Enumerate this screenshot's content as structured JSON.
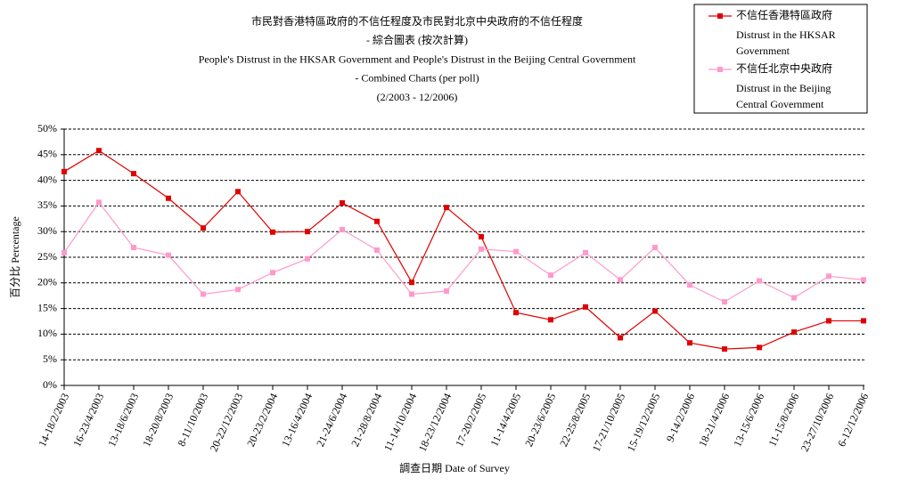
{
  "chart_data": {
    "type": "line",
    "title_lines": [
      "市民對香港特區政府的不信任程度及市民對北京中央政府的不信任程度",
      "- 綜合圖表 (按次計算)",
      "People's Distrust in the HKSAR Government and People's Distrust in the Beijing Central Government",
      "- Combined Charts (per poll)",
      "(2/2003 - 12/2006)"
    ],
    "y_label": "百分比 Percentage",
    "x_label": "調查日期 Date of Survey",
    "categories": [
      "14-18/2/2003",
      "16-23/4/2003",
      "13-18/6/2003",
      "18-20/8/2003",
      "8-11/10/2003",
      "20-22/12/2003",
      "20-23/2/2004",
      "13-16/4/2004",
      "21-24/6/2004",
      "21-28/8/2004",
      "11-14/10/2004",
      "18-23/12/2004",
      "17-20/2/2005",
      "11-14/4/2005",
      "20-23/6/2005",
      "22-25/8/2005",
      "17-21/10/2005",
      "15-19/12/2005",
      "9-14/2/2006",
      "18-21/4/2006",
      "13-15/6/2006",
      "11-15/8/2006",
      "23-27/10/2006",
      "6-12/12/2006"
    ],
    "series": [
      {
        "name": "不信任香港特區政府",
        "name_en_lines": [
          "Distrust in the HKSAR",
          "Government"
        ],
        "color": "#e00000",
        "values": [
          41.7,
          45.8,
          41.3,
          36.5,
          30.7,
          37.8,
          29.9,
          30.0,
          35.6,
          32.0,
          20.1,
          34.7,
          29.0,
          14.2,
          12.8,
          15.3,
          9.3,
          14.5,
          8.3,
          7.1,
          7.4,
          10.4,
          12.6,
          12.6
        ]
      },
      {
        "name": "不信任北京中央政府",
        "name_en_lines": [
          "Distrust in the Beijing",
          "Central Government"
        ],
        "color": "#ff99cc",
        "values": [
          25.9,
          35.7,
          26.9,
          25.4,
          17.8,
          18.7,
          22.0,
          24.7,
          30.4,
          26.4,
          17.8,
          18.4,
          26.6,
          26.1,
          21.5,
          25.9,
          20.6,
          26.9,
          19.6,
          16.3,
          20.4,
          17.1,
          21.3,
          20.6
        ]
      }
    ],
    "ylim": [
      0,
      50
    ],
    "yticks": [
      {
        "value": 0,
        "label": "0%"
      },
      {
        "value": 5,
        "label": "5%"
      },
      {
        "value": 10,
        "label": "10%"
      },
      {
        "value": 15,
        "label": "15%"
      },
      {
        "value": 20,
        "label": "20%"
      },
      {
        "value": 25,
        "label": "25%"
      },
      {
        "value": 30,
        "label": "30%"
      },
      {
        "value": 35,
        "label": "35%"
      },
      {
        "value": 40,
        "label": "40%"
      },
      {
        "value": 45,
        "label": "45%"
      },
      {
        "value": 50,
        "label": "50%"
      }
    ],
    "grid": true,
    "legend": "top-right"
  }
}
